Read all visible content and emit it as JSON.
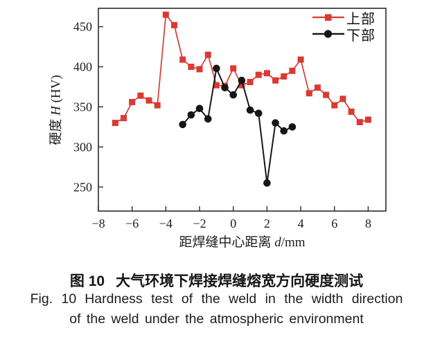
{
  "chart_data": {
    "type": "line",
    "title": "",
    "xlabel_prefix": "距焊缝中心距离 ",
    "xlabel_symbol": "d",
    "xlabel_suffix": "/mm",
    "ylabel_prefix": "硬度 ",
    "ylabel_symbol": "H",
    "ylabel_suffix": " (HV)",
    "xlim": [
      -8,
      9.05
    ],
    "ylim": [
      220,
      473
    ],
    "grid": false,
    "legend_position": "top-right-inside",
    "axis_color": "#2a2a2a",
    "xticks": [
      {
        "v": -8,
        "label": "−8"
      },
      {
        "v": -6,
        "label": "−6"
      },
      {
        "v": -4,
        "label": "−4"
      },
      {
        "v": -2,
        "label": "−2"
      },
      {
        "v": 0,
        "label": "0"
      },
      {
        "v": 2,
        "label": "2"
      },
      {
        "v": 4,
        "label": "4"
      },
      {
        "v": 6,
        "label": "6"
      },
      {
        "v": 8,
        "label": "8"
      }
    ],
    "yticks": [
      {
        "v": 250,
        "label": "250"
      },
      {
        "v": 300,
        "label": "300"
      },
      {
        "v": 350,
        "label": "350"
      },
      {
        "v": 400,
        "label": "400"
      },
      {
        "v": 450,
        "label": "450"
      }
    ],
    "series": [
      {
        "name": "上部",
        "color": "#d93a32",
        "marker": "square",
        "x": [
          -7,
          -6.5,
          -6,
          -5.5,
          -5,
          -4.5,
          -4,
          -3.5,
          -3,
          -2.5,
          -2,
          -1.5,
          -1,
          -0.5,
          0,
          0.5,
          1,
          1.5,
          2,
          2.5,
          3,
          3.5,
          4,
          4.5,
          5,
          5.5,
          6,
          6.5,
          7,
          7.5,
          8
        ],
        "values": [
          330,
          336,
          356,
          364,
          358,
          352,
          465,
          452,
          409,
          400,
          397,
          415,
          377,
          376,
          398,
          377,
          381,
          390,
          392,
          383,
          388,
          395,
          409,
          367,
          374,
          365,
          352,
          360,
          344,
          331,
          334
        ]
      },
      {
        "name": "下部",
        "color": "#161616",
        "marker": "circle",
        "x": [
          -3,
          -2.5,
          -2,
          -1.5,
          -1,
          -0.5,
          0,
          0.5,
          1,
          1.5,
          2,
          2.5,
          3,
          3.5
        ],
        "values": [
          328,
          340,
          348,
          335,
          398,
          374,
          365,
          383,
          346,
          342,
          255,
          330,
          320,
          325
        ]
      }
    ]
  },
  "figure": {
    "caption_zh": {
      "label": "图 10",
      "text": "大气环境下焊接焊缝熔宽方向硬度测试"
    },
    "caption_en": {
      "label": "Fig. 10",
      "line1": "Hardness test of the weld in the width direction",
      "line2": "of the weld under the atmospheric environment"
    }
  }
}
